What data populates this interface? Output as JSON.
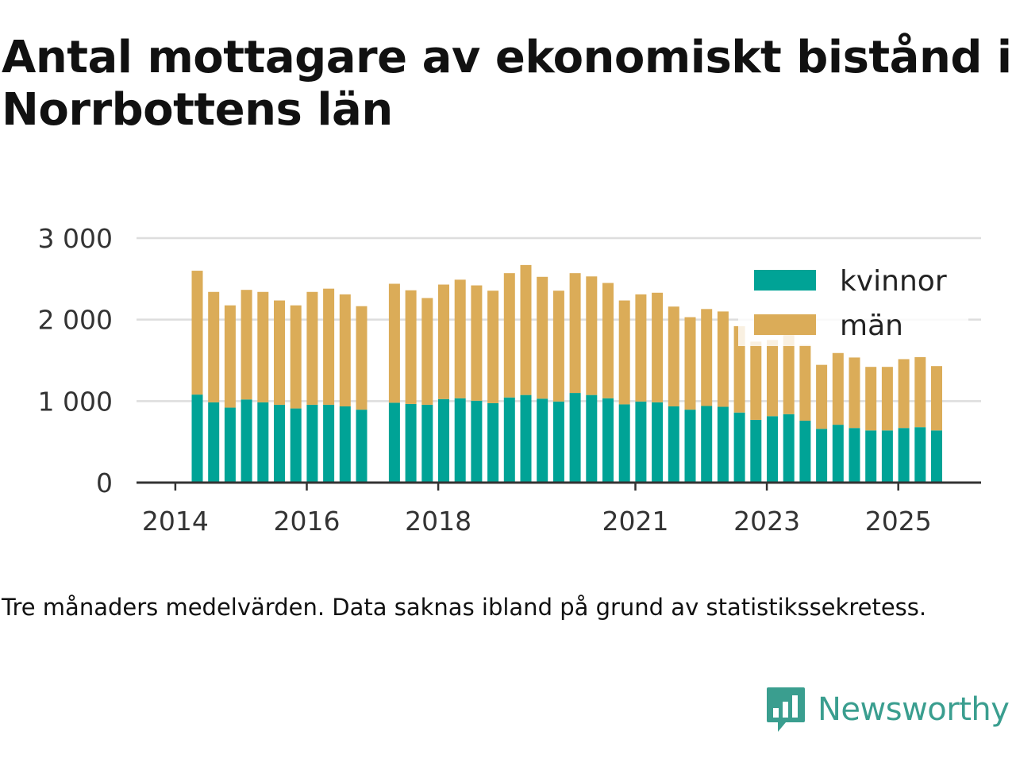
{
  "title": "Antal mottagare av ekonomiskt bistånd i Norrbottens län",
  "caption": "Tre månaders medelvärden. Data saknas ibland på grund av statistikssekretess.",
  "brand": {
    "name": "Newsworthy",
    "icon": "newsworthy-logo-icon",
    "color": "#3a9e8f"
  },
  "chart_data": {
    "type": "bar",
    "stacked": true,
    "title": "Antal mottagare av ekonomiskt bistånd i Norrbottens län",
    "xlabel": "",
    "ylabel": "",
    "ylim": [
      0,
      3000
    ],
    "yticks": [
      0,
      1000,
      2000,
      3000
    ],
    "ytick_labels": [
      "0",
      "1 000",
      "2 000",
      "3 000"
    ],
    "xticks": [
      2014,
      2016,
      2018,
      2021,
      2023,
      2025
    ],
    "xtick_labels": [
      "2014",
      "2016",
      "2018",
      "2021",
      "2023",
      "2025"
    ],
    "grid": true,
    "legend_position": "top-right",
    "series": [
      {
        "name": "kvinnor",
        "color": "#00a396",
        "values": [
          1080,
          985,
          920,
          1020,
          985,
          955,
          910,
          955,
          955,
          935,
          895,
          null,
          980,
          965,
          955,
          1025,
          1035,
          1005,
          975,
          1045,
          1075,
          1030,
          995,
          1100,
          1075,
          1035,
          960,
          995,
          985,
          935,
          895,
          940,
          930,
          860,
          770,
          815,
          840,
          760,
          660,
          710,
          670,
          640,
          640,
          670,
          680,
          640
        ]
      },
      {
        "name": "män",
        "color": "#dbac58",
        "values": [
          1520,
          1355,
          1255,
          1345,
          1355,
          1280,
          1265,
          1385,
          1425,
          1375,
          1270,
          null,
          1460,
          1395,
          1310,
          1405,
          1455,
          1415,
          1380,
          1525,
          1595,
          1495,
          1360,
          1470,
          1455,
          1415,
          1275,
          1315,
          1345,
          1225,
          1135,
          1190,
          1170,
          1060,
          960,
          935,
          1010,
          930,
          785,
          880,
          865,
          780,
          780,
          845,
          860,
          790
        ]
      }
    ]
  }
}
